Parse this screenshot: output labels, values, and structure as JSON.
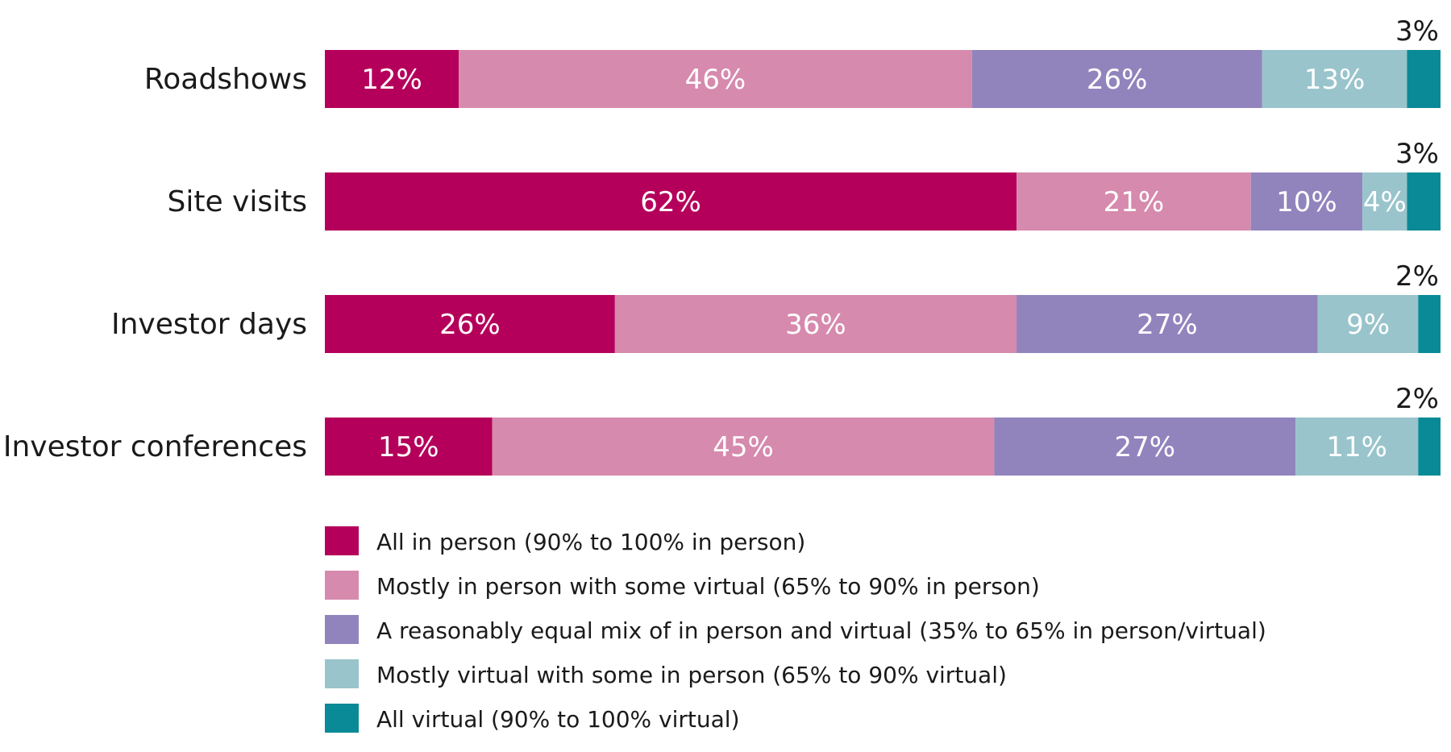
{
  "chart_data": {
    "type": "bar",
    "orientation": "horizontal",
    "stacked": true,
    "categories": [
      "Roadshows",
      "Site visits",
      "Investor days",
      "Investor conferences"
    ],
    "series": [
      {
        "name": "All in person (90% to 100% in person)",
        "color": "#b5005b",
        "values": [
          12,
          62,
          26,
          15
        ]
      },
      {
        "name": "Mostly in person with some virtual (65% to 90% in person)",
        "color": "#d68aad",
        "values": [
          46,
          21,
          36,
          45
        ]
      },
      {
        "name": "A reasonably equal mix of in person and virtual (35% to 65% in person/virtual)",
        "color": "#9184bd",
        "values": [
          26,
          10,
          27,
          27
        ]
      },
      {
        "name": "Mostly virtual with some in person (65% to 90% virtual)",
        "color": "#99c4cb",
        "values": [
          13,
          4,
          9,
          11
        ]
      },
      {
        "name": "All virtual (90% to 100% virtual)",
        "color": "#0a8a97",
        "values": [
          3,
          3,
          2,
          2
        ]
      }
    ],
    "value_suffix": "%",
    "xlim": [
      0,
      100
    ],
    "legend_placement": "bottom",
    "grid": false
  }
}
